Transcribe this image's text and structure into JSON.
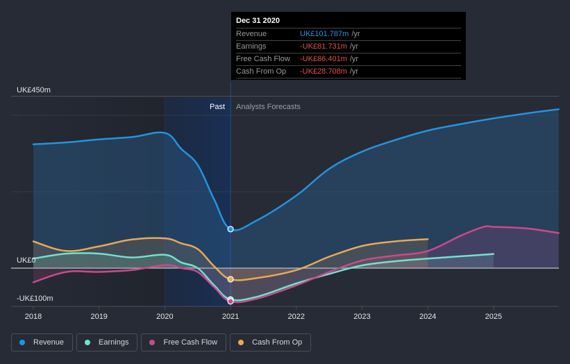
{
  "tooltip": {
    "date": "Dec 31 2020",
    "rows": [
      {
        "label": "Revenue",
        "value": "UK£101.787m",
        "unit": "/yr",
        "color": "#2394df"
      },
      {
        "label": "Earnings",
        "value": "-UK£81.731m",
        "unit": "/yr",
        "color": "#e84d4d"
      },
      {
        "label": "Free Cash Flow",
        "value": "-UK£86.401m",
        "unit": "/yr",
        "color": "#e84d4d"
      },
      {
        "label": "Cash From Op",
        "value": "-UK£28.708m",
        "unit": "/yr",
        "color": "#e84d4d"
      }
    ]
  },
  "legend": [
    {
      "label": "Revenue",
      "color": "#2394df"
    },
    {
      "label": "Earnings",
      "color": "#6fe3cf"
    },
    {
      "label": "Free Cash Flow",
      "color": "#c94a8c"
    },
    {
      "label": "Cash From Op",
      "color": "#e8a958"
    }
  ],
  "chart_data": {
    "type": "area",
    "title": "",
    "xlabel": "",
    "ylabel": "",
    "y_tick_labels": [
      {
        "value": 450,
        "label": "UK£450m"
      },
      {
        "value": 0,
        "label": "UK£0"
      },
      {
        "value": -100,
        "label": "-UK£100m"
      }
    ],
    "ylim": [
      -100,
      450
    ],
    "xlim": [
      2017.75,
      2025.99
    ],
    "x_ticks": [
      2018,
      2019,
      2020,
      2021,
      2022,
      2023,
      2024,
      2025
    ],
    "gridlines_y": [
      450,
      400,
      200,
      0,
      -100
    ],
    "divider_x": 2021,
    "past_label": "Past",
    "forecast_label": "Analysts Forecasts",
    "highlight_range": [
      2020,
      2021
    ],
    "series": [
      {
        "name": "Revenue",
        "color": "#2394df",
        "points": [
          [
            2018,
            324
          ],
          [
            2018.5,
            329
          ],
          [
            2019,
            337
          ],
          [
            2019.5,
            343
          ],
          [
            2020,
            354
          ],
          [
            2020.25,
            312
          ],
          [
            2020.5,
            270
          ],
          [
            2020.75,
            180
          ],
          [
            2021,
            102
          ],
          [
            2021.4,
            125
          ],
          [
            2022,
            190
          ],
          [
            2022.5,
            260
          ],
          [
            2023,
            305
          ],
          [
            2023.5,
            335
          ],
          [
            2024,
            360
          ],
          [
            2024.5,
            377
          ],
          [
            2025,
            392
          ],
          [
            2025.5,
            405
          ],
          [
            2025.99,
            416
          ]
        ],
        "marker_at": 2021
      },
      {
        "name": "Earnings",
        "color": "#6fe3cf",
        "points": [
          [
            2018,
            25
          ],
          [
            2018.5,
            38
          ],
          [
            2019,
            38
          ],
          [
            2019.5,
            28
          ],
          [
            2020,
            35
          ],
          [
            2020.25,
            15
          ],
          [
            2020.5,
            0
          ],
          [
            2020.75,
            -45
          ],
          [
            2021,
            -82
          ],
          [
            2021.4,
            -75
          ],
          [
            2022,
            -40
          ],
          [
            2022.5,
            -15
          ],
          [
            2023,
            7
          ],
          [
            2023.5,
            18
          ],
          [
            2024,
            25
          ],
          [
            2024.5,
            31
          ],
          [
            2025,
            37
          ]
        ],
        "marker_at": 2021
      },
      {
        "name": "Free Cash Flow",
        "color": "#c94a8c",
        "points": [
          [
            2018,
            -37
          ],
          [
            2018.5,
            -10
          ],
          [
            2019,
            -10
          ],
          [
            2019.5,
            -5
          ],
          [
            2020,
            8
          ],
          [
            2020.25,
            0
          ],
          [
            2020.5,
            -10
          ],
          [
            2020.75,
            -50
          ],
          [
            2021,
            -87
          ],
          [
            2021.4,
            -80
          ],
          [
            2022,
            -45
          ],
          [
            2022.5,
            -10
          ],
          [
            2023,
            20
          ],
          [
            2023.5,
            33
          ],
          [
            2024,
            45
          ],
          [
            2024.5,
            85
          ],
          [
            2024.85,
            108
          ],
          [
            2025,
            108
          ],
          [
            2025.5,
            104
          ],
          [
            2025.99,
            92
          ]
        ],
        "marker_at": 2021
      },
      {
        "name": "Cash From Op",
        "color": "#e8a958",
        "points": [
          [
            2018,
            70
          ],
          [
            2018.5,
            45
          ],
          [
            2019,
            57
          ],
          [
            2019.5,
            75
          ],
          [
            2020,
            78
          ],
          [
            2020.25,
            65
          ],
          [
            2020.5,
            50
          ],
          [
            2020.75,
            5
          ],
          [
            2021,
            -29
          ],
          [
            2021.4,
            -26
          ],
          [
            2022,
            -5
          ],
          [
            2022.5,
            30
          ],
          [
            2023,
            58
          ],
          [
            2023.5,
            70
          ],
          [
            2024,
            76
          ]
        ],
        "marker_at": 2021
      }
    ]
  }
}
